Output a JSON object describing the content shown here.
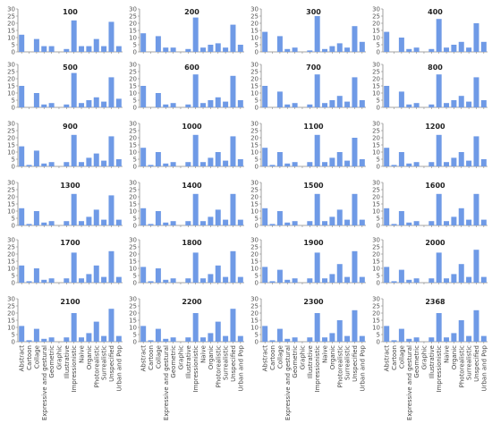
{
  "chart_data": {
    "type": "bar",
    "layout": "small-multiples",
    "grid": false,
    "bar_color": "#6f9ae6",
    "axis_color": "#888888",
    "ylim": [
      0,
      30
    ],
    "yticks": [
      0,
      5,
      10,
      15,
      20,
      25,
      30
    ],
    "categories": [
      "Abstract",
      "Cartoon",
      "Collage",
      "Expressive and gestural",
      "Geometric",
      "Graphic",
      "Illustrative",
      "Impressionistic",
      "Naive",
      "Organic",
      "Photorealistic",
      "Surrealistic",
      "Unspecified",
      "Urban and Pop"
    ],
    "panels": [
      {
        "title": "100",
        "values": [
          12,
          0,
          9,
          4,
          4,
          0,
          2,
          22,
          4,
          4,
          9,
          4,
          21,
          4
        ]
      },
      {
        "title": "200",
        "values": [
          13,
          0,
          11,
          3,
          3,
          0,
          2,
          24,
          3,
          5,
          6,
          3,
          19,
          5
        ]
      },
      {
        "title": "300",
        "values": [
          14,
          0,
          11,
          2,
          3,
          0,
          1,
          25,
          2,
          4,
          6,
          3,
          18,
          7
        ]
      },
      {
        "title": "400",
        "values": [
          14,
          0,
          10,
          2,
          3,
          0,
          2,
          23,
          3,
          5,
          7,
          3,
          20,
          7
        ]
      },
      {
        "title": "500",
        "values": [
          15,
          0,
          10,
          2,
          3,
          0,
          2,
          24,
          3,
          5,
          7,
          4,
          21,
          6
        ]
      },
      {
        "title": "600",
        "values": [
          15,
          0,
          10,
          2,
          3,
          0,
          2,
          23,
          3,
          5,
          7,
          4,
          22,
          5
        ]
      },
      {
        "title": "700",
        "values": [
          15,
          0,
          11,
          2,
          3,
          0,
          2,
          23,
          3,
          5,
          8,
          4,
          21,
          5
        ]
      },
      {
        "title": "800",
        "values": [
          15,
          0,
          11,
          2,
          3,
          0,
          2,
          23,
          3,
          5,
          8,
          4,
          21,
          5
        ]
      },
      {
        "title": "900",
        "values": [
          14,
          1,
          11,
          2,
          3,
          0,
          3,
          22,
          3,
          6,
          9,
          4,
          21,
          5
        ]
      },
      {
        "title": "1000",
        "values": [
          13,
          1,
          10,
          2,
          3,
          0,
          3,
          22,
          3,
          6,
          10,
          4,
          21,
          5
        ]
      },
      {
        "title": "1100",
        "values": [
          13,
          1,
          10,
          2,
          3,
          0,
          3,
          22,
          3,
          6,
          10,
          4,
          20,
          5
        ]
      },
      {
        "title": "1200",
        "values": [
          13,
          1,
          10,
          2,
          3,
          0,
          3,
          22,
          3,
          6,
          10,
          4,
          21,
          5
        ]
      },
      {
        "title": "1300",
        "values": [
          12,
          1,
          10,
          2,
          3,
          0,
          3,
          22,
          3,
          6,
          11,
          4,
          21,
          4
        ]
      },
      {
        "title": "1400",
        "values": [
          12,
          1,
          10,
          2,
          3,
          0,
          3,
          22,
          3,
          6,
          11,
          4,
          22,
          4
        ]
      },
      {
        "title": "1500",
        "values": [
          12,
          1,
          10,
          2,
          3,
          0,
          3,
          22,
          3,
          6,
          11,
          4,
          22,
          4
        ]
      },
      {
        "title": "1600",
        "values": [
          12,
          1,
          10,
          2,
          3,
          0,
          3,
          22,
          3,
          6,
          12,
          4,
          22,
          4
        ]
      },
      {
        "title": "1700",
        "values": [
          12,
          1,
          10,
          2,
          3,
          0,
          3,
          21,
          3,
          6,
          12,
          4,
          22,
          4
        ]
      },
      {
        "title": "1800",
        "values": [
          11,
          1,
          10,
          2,
          3,
          0,
          3,
          21,
          3,
          6,
          12,
          4,
          22,
          4
        ]
      },
      {
        "title": "1900",
        "values": [
          11,
          1,
          9,
          2,
          3,
          0,
          3,
          21,
          3,
          6,
          13,
          4,
          22,
          4
        ]
      },
      {
        "title": "2000",
        "values": [
          11,
          1,
          9,
          2,
          3,
          0,
          3,
          21,
          3,
          6,
          13,
          4,
          23,
          4
        ]
      },
      {
        "title": "2100",
        "values": [
          11,
          1,
          9,
          2,
          3,
          0,
          3,
          20,
          3,
          6,
          14,
          4,
          23,
          4
        ]
      },
      {
        "title": "2200",
        "values": [
          11,
          1,
          9,
          2,
          3,
          0,
          3,
          20,
          3,
          6,
          14,
          4,
          23,
          4
        ]
      },
      {
        "title": "2300",
        "values": [
          11,
          1,
          9,
          2,
          3,
          0,
          3,
          20,
          3,
          6,
          15,
          4,
          22,
          4
        ]
      },
      {
        "title": "2368",
        "values": [
          11,
          1,
          9,
          2,
          3,
          0,
          3,
          20,
          3,
          6,
          15,
          4,
          22,
          4
        ]
      }
    ]
  }
}
